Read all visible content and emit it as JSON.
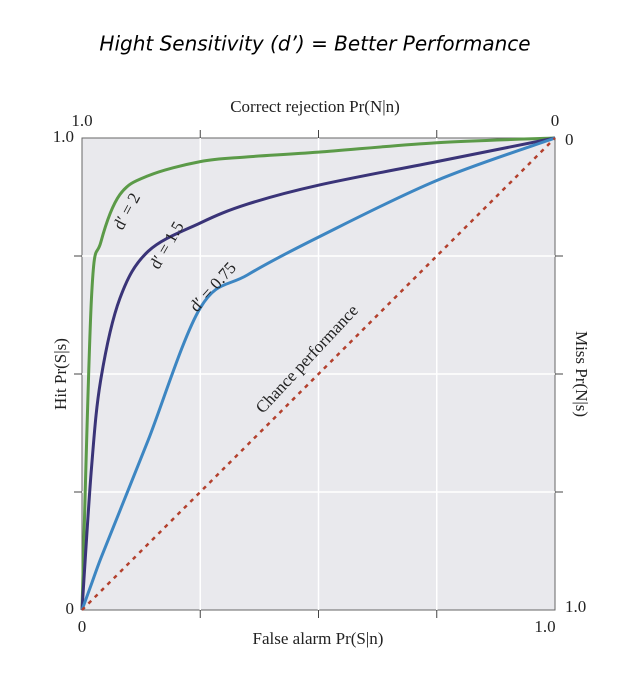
{
  "chart_data": {
    "type": "line",
    "title": "Hight Sensitivity (d’) = Better Performance",
    "x_label": "False alarm Pr(S|n)",
    "y_label": "Hit Pr(S|s)",
    "x2_label": "Correct rejection Pr(N|n)",
    "y2_label": "Miss Pr(N|s)",
    "x": [
      0,
      0.02,
      0.04,
      0.08,
      0.14,
      0.25,
      0.35,
      0.5,
      0.75,
      1
    ],
    "series": [
      {
        "name": "d′ = 2",
        "color": "#5b9a48",
        "values": [
          0,
          0.66,
          0.78,
          0.88,
          0.92,
          0.95,
          0.96,
          0.97,
          0.99,
          1
        ]
      },
      {
        "name": "d′ = 1.5",
        "color": "#3a3478",
        "values": [
          0,
          0.3,
          0.49,
          0.66,
          0.76,
          0.82,
          0.86,
          0.9,
          0.95,
          1
        ]
      },
      {
        "name": "d′ = 0.75",
        "color": "#3d86c2",
        "values": [
          0,
          0.055,
          0.11,
          0.21,
          0.36,
          0.64,
          0.71,
          0.79,
          0.91,
          1
        ]
      },
      {
        "name": "Chance performance",
        "color": "#b3402d",
        "dashed": true,
        "values": [
          0,
          0.02,
          0.04,
          0.08,
          0.14,
          0.25,
          0.35,
          0.5,
          0.75,
          1
        ]
      }
    ],
    "xlim": [
      0,
      1
    ],
    "ylim": [
      0,
      1
    ],
    "xticks": [
      0,
      {
        "value": 1,
        "label": "1.0"
      }
    ],
    "yticks": [
      0,
      {
        "value": 1,
        "label": "1.0"
      }
    ],
    "x2lim": [
      1,
      0
    ],
    "x2ticks": [
      {
        "value": 1,
        "label": "1.0"
      },
      0
    ],
    "y2lim": [
      1,
      0
    ],
    "y2ticks": [
      0,
      {
        "value": 1,
        "label": "1.0"
      }
    ],
    "minor_ticks": [
      0.25,
      0.5,
      0.75
    ],
    "grid": true
  }
}
